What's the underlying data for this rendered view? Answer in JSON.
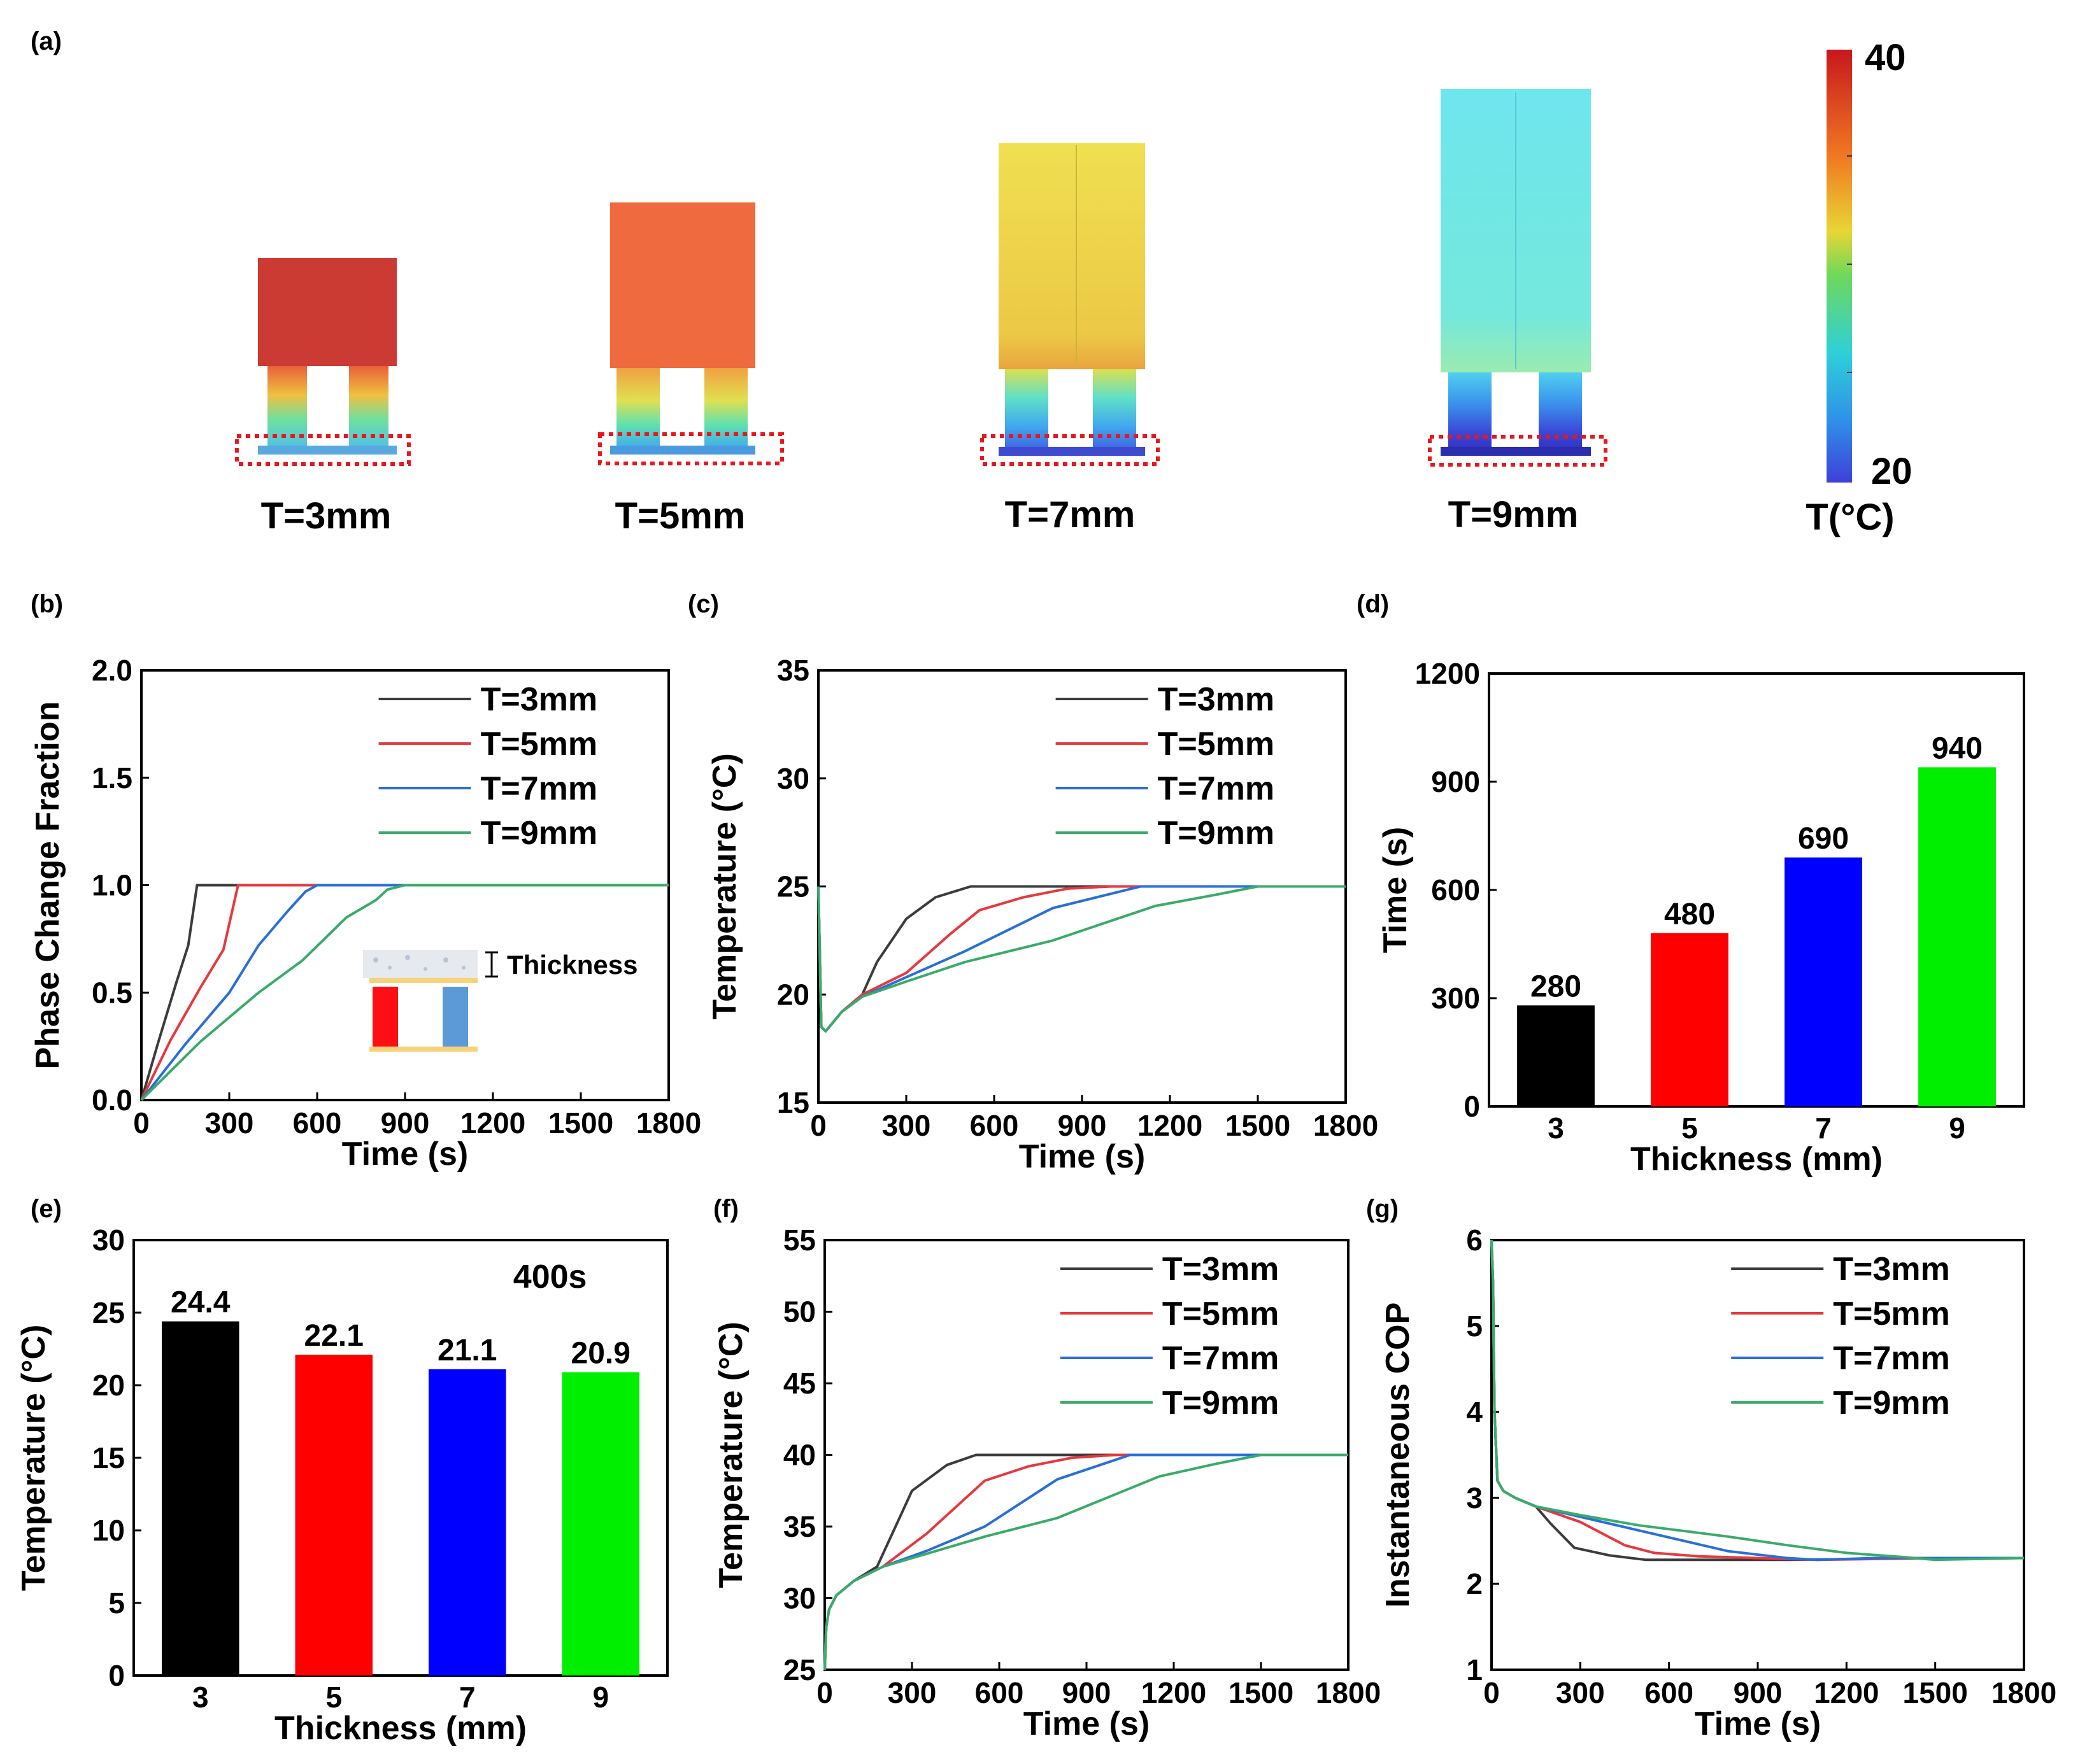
{
  "panel_labels": [
    "(a)",
    "(b)",
    "(c)",
    "(d)",
    "(e)",
    "(f)",
    "(g)"
  ],
  "panel_a": {
    "labels": [
      "T=3mm",
      "T=5mm",
      "T=7mm",
      "T=9mm"
    ],
    "colors": [
      "#cc3b33",
      "#ef6a3e",
      "#ecd24a",
      "#72e6e6"
    ],
    "colorbar": {
      "max_label": "40",
      "min_label": "20",
      "title": "T(°C)"
    }
  },
  "inset": {
    "label": "Thickness"
  },
  "series_names": [
    "T=3mm",
    "T=5mm",
    "T=7mm",
    "T=9mm"
  ],
  "series_colors": [
    "#3c3c3c",
    "#e6393e",
    "#2a6fd6",
    "#3aab6a"
  ],
  "chart_data": [
    {
      "id": "b",
      "type": "line",
      "xlabel": "Time (s)",
      "ylabel": "Phase Change Fraction",
      "xlim": [
        0,
        1800
      ],
      "ylim": [
        0,
        2.0
      ],
      "xticks": [
        0,
        300,
        600,
        900,
        1200,
        1500,
        1800
      ],
      "yticks": [
        0.0,
        0.5,
        1.0,
        1.5,
        2.0
      ],
      "ytick_labels": [
        "0.0",
        "0.5",
        "1.0",
        "1.5",
        "2.0"
      ],
      "legend": "top-right",
      "series": [
        {
          "name": "T=3mm",
          "x": [
            0,
            60,
            120,
            160,
            190,
            220,
            1800
          ],
          "y": [
            0,
            0.28,
            0.55,
            0.72,
            1.0,
            1.0,
            1.0
          ]
        },
        {
          "name": "T=5mm",
          "x": [
            0,
            100,
            200,
            280,
            330,
            380,
            1800
          ],
          "y": [
            0,
            0.28,
            0.52,
            0.7,
            1.0,
            1.0,
            1.0
          ]
        },
        {
          "name": "T=7mm",
          "x": [
            0,
            150,
            300,
            400,
            500,
            560,
            600,
            1800
          ],
          "y": [
            0,
            0.26,
            0.5,
            0.72,
            0.88,
            0.97,
            1.0,
            1.0
          ]
        },
        {
          "name": "T=9mm",
          "x": [
            0,
            200,
            400,
            550,
            700,
            800,
            840,
            900,
            1800
          ],
          "y": [
            0,
            0.27,
            0.5,
            0.65,
            0.85,
            0.93,
            0.98,
            1.0,
            1.0
          ]
        }
      ]
    },
    {
      "id": "c",
      "type": "line",
      "xlabel": "Time (s)",
      "ylabel": "Temperature (°C)",
      "xlim": [
        0,
        1800
      ],
      "ylim": [
        15,
        35
      ],
      "xticks": [
        0,
        300,
        600,
        900,
        1200,
        1500,
        1800
      ],
      "yticks": [
        15,
        20,
        25,
        30,
        35
      ],
      "ytick_labels": [
        "15",
        "20",
        "25",
        "30",
        "35"
      ],
      "legend": "top-right",
      "series": [
        {
          "name": "T=3mm",
          "x": [
            0,
            10,
            25,
            80,
            150,
            200,
            300,
            400,
            520,
            700,
            1000,
            1800
          ],
          "y": [
            25,
            18.5,
            18.3,
            19.2,
            20.0,
            21.5,
            23.5,
            24.5,
            25.0,
            25.0,
            25.0,
            25.0
          ]
        },
        {
          "name": "T=5mm",
          "x": [
            0,
            10,
            25,
            80,
            150,
            300,
            450,
            550,
            700,
            850,
            1000,
            1800
          ],
          "y": [
            25,
            18.5,
            18.3,
            19.2,
            20.0,
            21.0,
            22.8,
            23.9,
            24.5,
            24.9,
            25.0,
            25.0
          ]
        },
        {
          "name": "T=7mm",
          "x": [
            0,
            10,
            25,
            80,
            150,
            300,
            500,
            800,
            1100,
            1200,
            1800
          ],
          "y": [
            25,
            18.5,
            18.3,
            19.2,
            19.9,
            20.8,
            22.0,
            24.0,
            25.0,
            25.0,
            25.0
          ]
        },
        {
          "name": "T=9mm",
          "x": [
            0,
            10,
            25,
            80,
            150,
            300,
            500,
            800,
            1150,
            1350,
            1500,
            1800
          ],
          "y": [
            25,
            18.5,
            18.3,
            19.2,
            19.9,
            20.6,
            21.5,
            22.5,
            24.1,
            24.6,
            25.0,
            25.0
          ]
        }
      ]
    },
    {
      "id": "d",
      "type": "bar",
      "xlabel": "Thickness (mm)",
      "ylabel": "Time (s)",
      "categories": [
        "3",
        "5",
        "7",
        "9"
      ],
      "values": [
        280,
        480,
        690,
        940
      ],
      "value_labels": [
        "280",
        "480",
        "690",
        "940"
      ],
      "colors": [
        "#000000",
        "#ff0000",
        "#0000ff",
        "#00ee00"
      ],
      "ylim": [
        0,
        1200
      ],
      "yticks": [
        0,
        300,
        600,
        900,
        1200
      ],
      "ytick_labels": [
        "0",
        "300",
        "600",
        "900",
        "1200"
      ]
    },
    {
      "id": "e",
      "type": "bar",
      "xlabel": "Thickness (mm)",
      "ylabel": "Temperature (°C)",
      "annotation": "400s",
      "categories": [
        "3",
        "5",
        "7",
        "9"
      ],
      "values": [
        24.4,
        22.1,
        21.1,
        20.9
      ],
      "value_labels": [
        "24.4",
        "22.1",
        "21.1",
        "20.9"
      ],
      "colors": [
        "#000000",
        "#ff0000",
        "#0000ff",
        "#00ee00"
      ],
      "ylim": [
        0,
        30
      ],
      "yticks": [
        0,
        5,
        10,
        15,
        20,
        25,
        30
      ],
      "ytick_labels": [
        "0",
        "5",
        "10",
        "15",
        "20",
        "25",
        "30"
      ]
    },
    {
      "id": "f",
      "type": "line",
      "xlabel": "Time (s)",
      "ylabel": "Temperature (°C)",
      "xlim": [
        0,
        1800
      ],
      "ylim": [
        25,
        55
      ],
      "xticks": [
        0,
        300,
        600,
        900,
        1200,
        1500,
        1800
      ],
      "yticks": [
        25,
        30,
        35,
        40,
        45,
        50,
        55
      ],
      "ytick_labels": [
        "25",
        "30",
        "35",
        "40",
        "45",
        "50",
        "55"
      ],
      "legend": "top-right",
      "series": [
        {
          "name": "T=3mm",
          "x": [
            0,
            5,
            15,
            40,
            100,
            180,
            300,
            420,
            520,
            700,
            1000,
            1800
          ],
          "y": [
            25,
            28,
            29.2,
            30.2,
            31.2,
            32.2,
            37.5,
            39.3,
            40.0,
            40.0,
            40.0,
            40.0
          ]
        },
        {
          "name": "T=5mm",
          "x": [
            0,
            5,
            15,
            40,
            100,
            200,
            350,
            550,
            700,
            850,
            1000,
            1800
          ],
          "y": [
            25,
            28,
            29.2,
            30.2,
            31.2,
            32.2,
            34.5,
            38.2,
            39.2,
            39.8,
            40.0,
            40.0
          ]
        },
        {
          "name": "T=7mm",
          "x": [
            0,
            5,
            15,
            40,
            100,
            200,
            350,
            550,
            800,
            1050,
            1200,
            1800
          ],
          "y": [
            25,
            28,
            29.2,
            30.2,
            31.2,
            32.2,
            33.3,
            35.0,
            38.3,
            40.0,
            40.0,
            40.0
          ]
        },
        {
          "name": "T=9mm",
          "x": [
            0,
            5,
            15,
            40,
            100,
            200,
            350,
            550,
            800,
            1150,
            1350,
            1500,
            1800
          ],
          "y": [
            25,
            28,
            29.2,
            30.2,
            31.2,
            32.2,
            33.1,
            34.3,
            35.6,
            38.5,
            39.4,
            40.0,
            40.0
          ]
        }
      ]
    },
    {
      "id": "g",
      "type": "line",
      "xlabel": "Time (s)",
      "ylabel": "Instantaneous COP",
      "xlim": [
        0,
        1800
      ],
      "ylim": [
        1,
        6
      ],
      "xticks": [
        0,
        300,
        600,
        900,
        1200,
        1500,
        1800
      ],
      "yticks": [
        1,
        2,
        3,
        4,
        5,
        6
      ],
      "ytick_labels": [
        "1",
        "2",
        "3",
        "4",
        "5",
        "6"
      ],
      "legend": "top-right",
      "series": [
        {
          "name": "T=3mm",
          "x": [
            0,
            5,
            10,
            20,
            40,
            80,
            150,
            200,
            280,
            400,
            520,
            700,
            1000,
            1500,
            1800
          ],
          "y": [
            6,
            5.5,
            4.0,
            3.2,
            3.08,
            3.0,
            2.9,
            2.7,
            2.42,
            2.33,
            2.28,
            2.28,
            2.28,
            2.3,
            2.3
          ]
        },
        {
          "name": "T=5mm",
          "x": [
            0,
            5,
            10,
            20,
            40,
            80,
            150,
            300,
            450,
            550,
            700,
            900,
            1100,
            1500,
            1800
          ],
          "y": [
            6,
            5.5,
            4.0,
            3.2,
            3.08,
            3.0,
            2.9,
            2.72,
            2.45,
            2.36,
            2.32,
            2.3,
            2.28,
            2.3,
            2.3
          ]
        },
        {
          "name": "T=7mm",
          "x": [
            0,
            5,
            10,
            20,
            40,
            80,
            150,
            300,
            500,
            800,
            1000,
            1100,
            1300,
            1500,
            1800
          ],
          "y": [
            6,
            5.5,
            4.0,
            3.2,
            3.08,
            3.0,
            2.9,
            2.78,
            2.62,
            2.38,
            2.3,
            2.28,
            2.3,
            2.3,
            2.3
          ]
        },
        {
          "name": "T=9mm",
          "x": [
            0,
            5,
            10,
            20,
            40,
            80,
            150,
            300,
            500,
            800,
            1000,
            1200,
            1400,
            1500,
            1800
          ],
          "y": [
            6,
            5.5,
            4.0,
            3.2,
            3.08,
            3.0,
            2.9,
            2.8,
            2.68,
            2.55,
            2.45,
            2.36,
            2.31,
            2.28,
            2.3
          ]
        }
      ]
    }
  ]
}
